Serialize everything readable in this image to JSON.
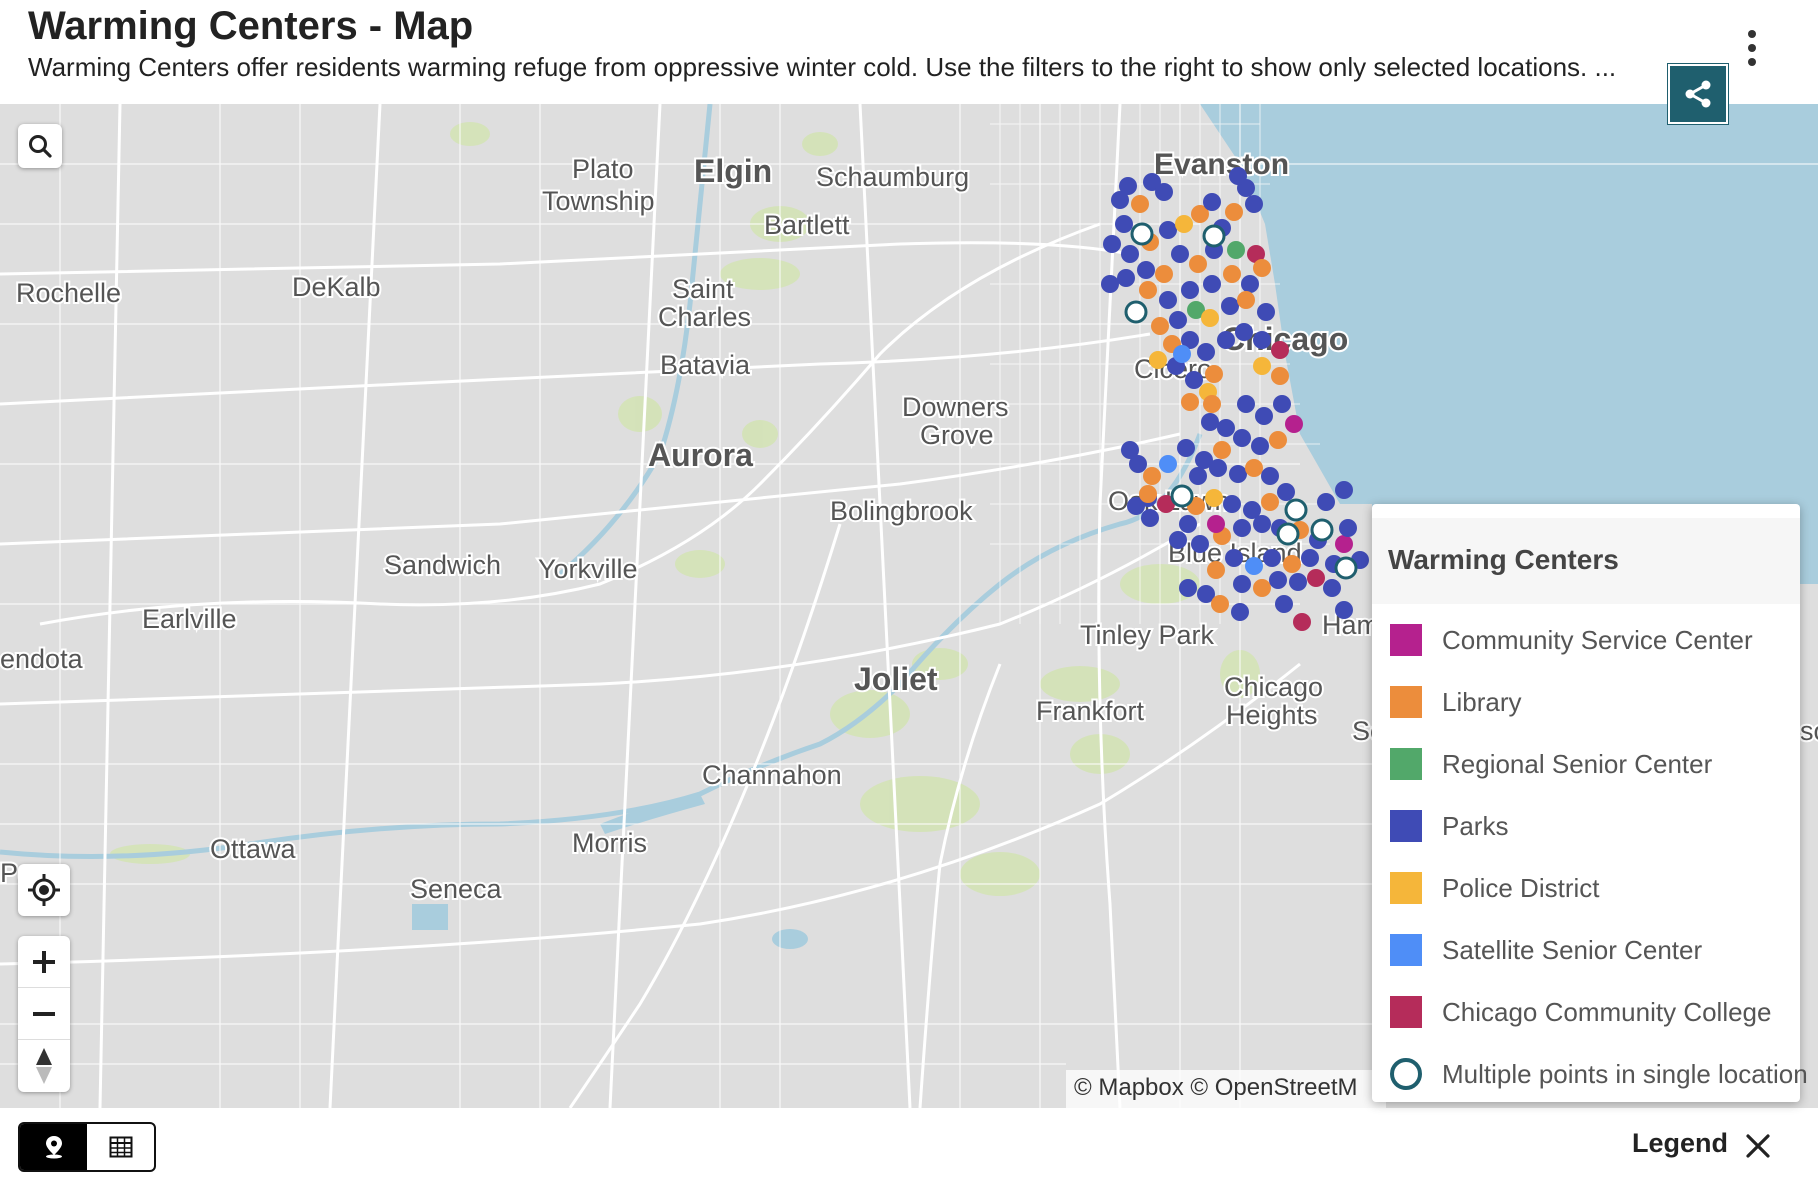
{
  "header": {
    "title": "Warming Centers - Map",
    "subtitle": "Warming Centers offer residents warming refuge from oppressive winter cold. Use the filters to the right to show only selected locations. ..."
  },
  "map": {
    "attribution": "© Mapbox © OpenStreetM",
    "place_labels": [
      "Plato",
      "Township",
      "Elgin",
      "Schaumburg",
      "Evanston",
      "Bartlett",
      "Rochelle",
      "DeKalb",
      "Saint",
      "Charles",
      "Chicago",
      "Batavia",
      "Cicero",
      "Downers",
      "Grove",
      "Aurora",
      "Oak Lawn",
      "Bolingbrook",
      "Blue Island",
      "Sandwich",
      "Yorkville",
      "Earlville",
      "endota",
      "Tinley Park",
      "Ham",
      "Chicago",
      "Heights",
      "Joliet",
      "Frankfort",
      "Sc",
      "Channahon",
      "Ottawa",
      "Morris",
      "Seneca",
      "Pe",
      "so"
    ],
    "icons": {
      "search": "search-icon",
      "locate": "locate-icon",
      "zoom_in": "plus-icon",
      "zoom_out": "minus-icon",
      "compass": "compass-icon",
      "share": "share-icon"
    }
  },
  "legend": {
    "title": "Warming Centers",
    "items": [
      {
        "label": "Community Service Center",
        "color": "#b5218e"
      },
      {
        "label": "Library",
        "color": "#ec8d3c"
      },
      {
        "label": "Regional Senior Center",
        "color": "#52a86a"
      },
      {
        "label": "Parks",
        "color": "#3f4bb5"
      },
      {
        "label": "Police District",
        "color": "#f5b63a"
      },
      {
        "label": "Satellite Senior Center",
        "color": "#4f8ef7"
      },
      {
        "label": "Chicago Community College",
        "color": "#b52c5a"
      },
      {
        "label": "Multiple points in single location",
        "color": "#1f5f6e"
      }
    ]
  },
  "footer": {
    "legend_toggle": "Legend",
    "icons": {
      "map_view": "map-pin-icon",
      "table_view": "table-icon",
      "close": "close-icon"
    }
  }
}
